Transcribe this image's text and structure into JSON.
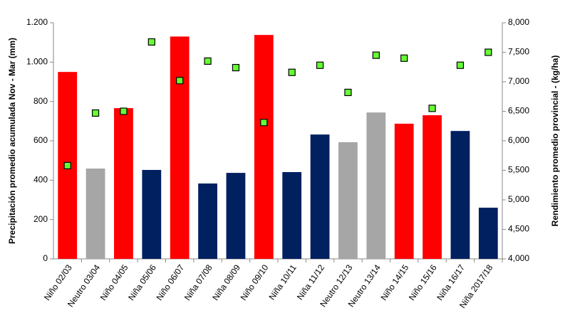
{
  "chart_data": {
    "type": "bar",
    "y_label": "Precipitación promedio acumulada Nov - Mar (mm)",
    "y2_label": "Rendimiento promedio provincial - (kg/ha)",
    "categories": [
      "Niño 02/03",
      "Neutro 03/04",
      "Niño 04/05",
      "Niña 05/06",
      "Niño 06/07",
      "Niña 07/08",
      "Niña 08/09",
      "Niño 09/10",
      "Niña 10/11",
      "Niña 11/12",
      "Neutro 12/13",
      "Neutro 13/14",
      "Niño 14/15",
      "Niño 15/16",
      "Niña 16/17",
      "Niña 2017/18"
    ],
    "series": [
      {
        "type": "bar",
        "colors": [
          "#ff0000",
          "#a6a6a6",
          "#ff0000",
          "#002060",
          "#ff0000",
          "#002060",
          "#002060",
          "#ff0000",
          "#002060",
          "#002060",
          "#a6a6a6",
          "#a6a6a6",
          "#ff0000",
          "#ff0000",
          "#002060",
          "#002060"
        ],
        "values": [
          950,
          459,
          766,
          452,
          1130,
          383,
          437,
          1138,
          441,
          632,
          593,
          744,
          687,
          730,
          650,
          260
        ]
      },
      {
        "type": "scatter",
        "color": "#66ff33",
        "axis": "y2",
        "values": [
          5580,
          6470,
          6500,
          7675,
          7020,
          7350,
          7240,
          6310,
          7160,
          7280,
          6820,
          7450,
          7400,
          6550,
          7280,
          7500
        ]
      }
    ],
    "ylim": [
      0,
      1200
    ],
    "yticks": [
      0,
      200,
      400,
      600,
      800,
      {
        "value": 1000,
        "label": "1.000"
      },
      {
        "value": 1200,
        "label": "1.200"
      }
    ],
    "y2lim": [
      4000,
      8000
    ],
    "y2ticks": [
      {
        "value": 4000,
        "label": "4,000"
      },
      {
        "value": 4500,
        "label": "4,500"
      },
      {
        "value": 5000,
        "label": "5,000"
      },
      {
        "value": 5500,
        "label": "5,500"
      },
      {
        "value": 6000,
        "label": "6,000"
      },
      {
        "value": 6500,
        "label": "6,500"
      },
      {
        "value": 7000,
        "label": "7,000"
      },
      {
        "value": 7500,
        "label": "7,500"
      },
      {
        "value": 8000,
        "label": "8,000"
      }
    ]
  }
}
